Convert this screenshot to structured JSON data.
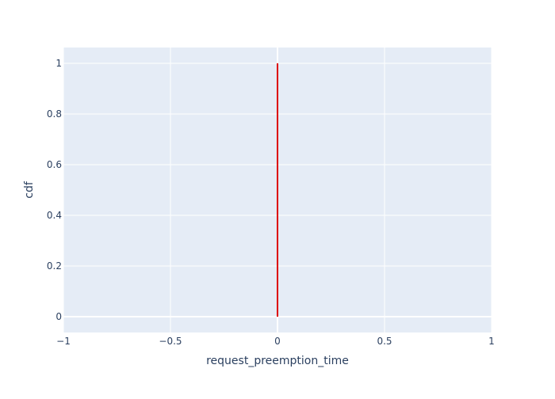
{
  "chart_data": {
    "type": "line",
    "title": "",
    "xlabel": "request_preemption_time",
    "ylabel": "cdf",
    "xlim": [
      -1,
      1
    ],
    "ylim": [
      -0.0625,
      1.0625
    ],
    "x_ticks": [
      -1,
      -0.5,
      0,
      0.5,
      1
    ],
    "x_tick_labels": [
      "−1",
      "−0.5",
      "0",
      "0.5",
      "1"
    ],
    "y_ticks": [
      0,
      0.2,
      0.4,
      0.6,
      0.8,
      1
    ],
    "y_tick_labels": [
      "0",
      "0.2",
      "0.4",
      "0.6",
      "0.8",
      "1"
    ],
    "grid": true,
    "legend": "none",
    "series": [
      {
        "x": [
          0,
          0
        ],
        "y": [
          0,
          1
        ],
        "color": "#dd0000"
      }
    ]
  },
  "colors": {
    "plot_background": "#e5ecf6",
    "grid": "#ffffff",
    "text": "#2a3f5f"
  }
}
